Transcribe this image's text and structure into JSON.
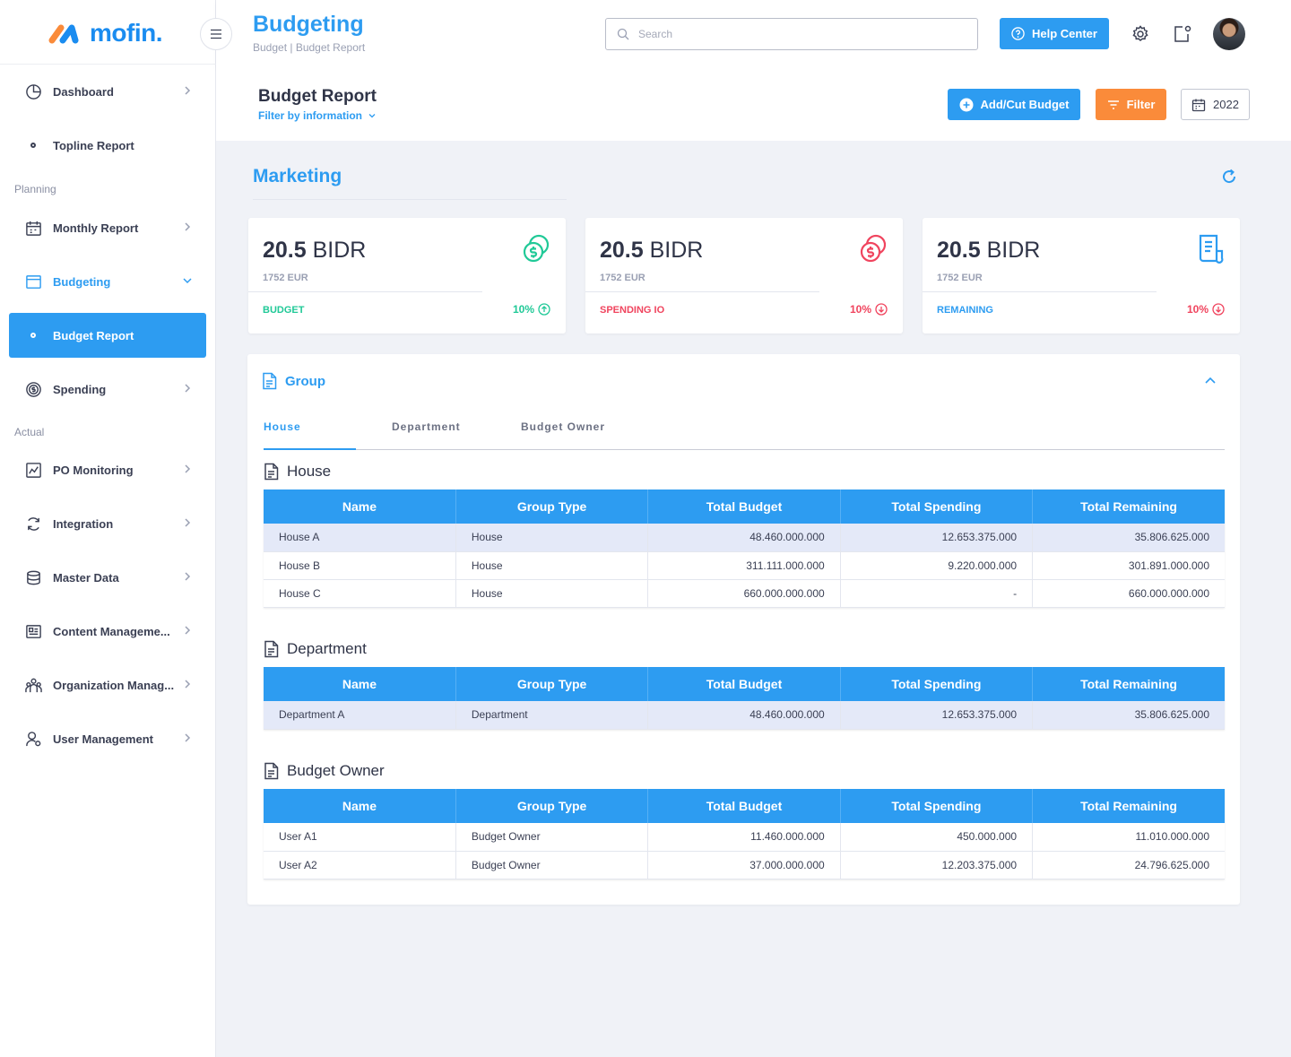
{
  "colors": {
    "primary": "#2d9cf1",
    "orange": "#fa8b3a",
    "green": "#20c997",
    "red": "#f0445e"
  },
  "app": {
    "logo": "mofin."
  },
  "sidebar": {
    "items": [
      {
        "label": "Dashboard",
        "icon": "pie-chart-icon"
      },
      {
        "label": "Topline Report",
        "icon": "dot-icon"
      },
      {
        "label": "Monthly Report",
        "icon": "calendar-icon"
      },
      {
        "label": "Budgeting",
        "icon": "wallet-icon"
      },
      {
        "label": "Budget Report",
        "icon": "dot-icon"
      },
      {
        "label": "Spending",
        "icon": "dollar-circle-icon"
      },
      {
        "label": "PO Monitoring",
        "icon": "chart-icon"
      },
      {
        "label": "Integration",
        "icon": "sync-icon"
      },
      {
        "label": "Master Data",
        "icon": "database-icon"
      },
      {
        "label": "Content Manageme...",
        "icon": "content-icon"
      },
      {
        "label": "Organization Manag...",
        "icon": "people-icon"
      },
      {
        "label": "User Management",
        "icon": "user-gear-icon"
      }
    ],
    "sections": {
      "planning": "Planning",
      "actual": "Actual"
    }
  },
  "header": {
    "title": "Budgeting",
    "breadcrumb": "Budget | Budget Report",
    "search_placeholder": "Search",
    "help_label": "Help Center"
  },
  "subheader": {
    "title": "Budget Report",
    "filter_info": "Filter by information",
    "add_cut_label": "Add/Cut Budget",
    "filter_label": "Filter",
    "year": "2022"
  },
  "section": {
    "title": "Marketing"
  },
  "cards": [
    {
      "amount": "20.5",
      "unit": "BIDR",
      "sub": "1752 EUR",
      "label": "BUDGET",
      "pct": "10%"
    },
    {
      "amount": "20.5",
      "unit": "BIDR",
      "sub": "1752 EUR",
      "label": "SPENDING IO",
      "pct": "10%"
    },
    {
      "amount": "20.5",
      "unit": "BIDR",
      "sub": "1752 EUR",
      "label": "REMAINING",
      "pct": "10%"
    }
  ],
  "group": {
    "title": "Group",
    "tabs": [
      "House",
      "Department",
      "Budget Owner"
    ],
    "columns": [
      "Name",
      "Group Type",
      "Total Budget",
      "Total Spending",
      "Total Remaining"
    ],
    "tables": [
      {
        "title": "House",
        "rows": [
          [
            "House A",
            "House",
            "48.460.000.000",
            "12.653.375.000",
            "35.806.625.000"
          ],
          [
            "House B",
            "House",
            "311.111.000.000",
            "9.220.000.000",
            "301.891.000.000"
          ],
          [
            "House C",
            "House",
            "660.000.000.000",
            "-",
            "660.000.000.000"
          ]
        ]
      },
      {
        "title": "Department",
        "rows": [
          [
            "Department A",
            "Department",
            "48.460.000.000",
            "12.653.375.000",
            "35.806.625.000"
          ]
        ]
      },
      {
        "title": "Budget Owner",
        "rows": [
          [
            "User A1",
            "Budget Owner",
            "11.460.000.000",
            "450.000.000",
            "11.010.000.000"
          ],
          [
            "User A2",
            "Budget Owner",
            "37.000.000.000",
            "12.203.375.000",
            "24.796.625.000"
          ]
        ]
      }
    ]
  }
}
